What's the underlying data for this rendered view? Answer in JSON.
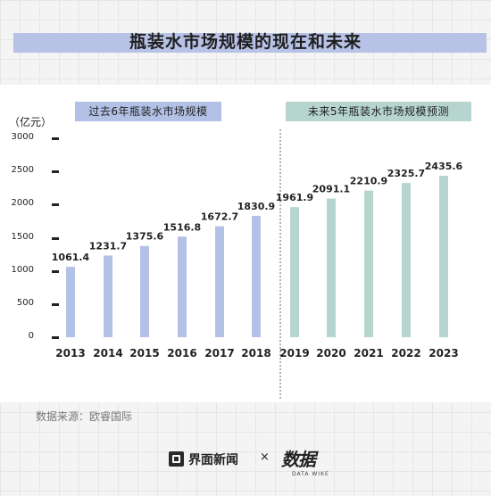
{
  "title": "瓶装水市场规模的现在和未来",
  "unit": "（亿元）",
  "badges": {
    "past": "过去6年瓶装水市场规模",
    "future": "未来5年瓶装水市场规模预测"
  },
  "source": "数据来源：欧睿国际",
  "footer": {
    "brand": "界面新闻",
    "separator": "×",
    "brand2": "数据",
    "brand2_sub": "DATA WIKE"
  },
  "colors": {
    "past": "#b3c1e6",
    "future": "#b7d5cf",
    "title_band": "#b7c2e6"
  },
  "chart_data": {
    "type": "bar",
    "title": "瓶装水市场规模的现在和未来",
    "ylabel": "（亿元）",
    "xlabel": "",
    "ylim": [
      0,
      3000
    ],
    "yticks": [
      "3000",
      "2500",
      "2000",
      "1500",
      "1000",
      "500",
      "0"
    ],
    "categories": [
      "2013",
      "2014",
      "2015",
      "2016",
      "2017",
      "2018",
      "2019",
      "2020",
      "2021",
      "2022",
      "2023"
    ],
    "values": [
      1061.4,
      1231.7,
      1375.6,
      1516.8,
      1672.7,
      1830.9,
      1961.9,
      2091.1,
      2210.9,
      2325.7,
      2435.6
    ],
    "labels": [
      "1061.4",
      "1231.7",
      "1375.6",
      "1516.8",
      "1672.7",
      "1830.9",
      "1961.9",
      "2091.1",
      "2210.9",
      "2325.7",
      "2435.6"
    ],
    "groups": [
      "past",
      "past",
      "past",
      "past",
      "past",
      "past",
      "future",
      "future",
      "future",
      "future",
      "future"
    ],
    "grid": false,
    "legend": "none"
  }
}
